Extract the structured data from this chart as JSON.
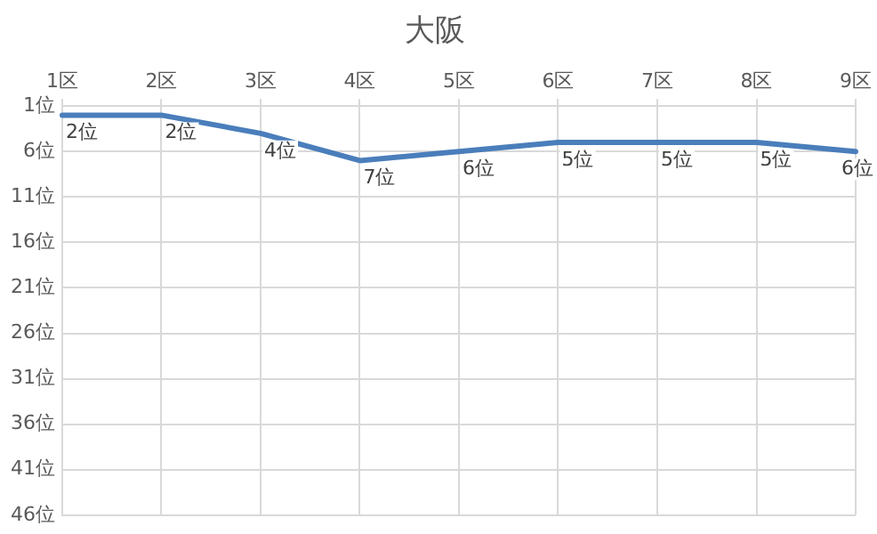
{
  "chart_data": {
    "type": "line",
    "title": "大阪",
    "categories": [
      "1区",
      "2区",
      "3区",
      "4区",
      "5区",
      "6区",
      "7区",
      "8区",
      "9区"
    ],
    "series": [
      {
        "color": "#4a7ebb",
        "values": [
          2,
          2,
          4,
          7,
          6,
          5,
          5,
          5,
          6
        ],
        "value_labels": [
          "2位",
          "2位",
          "4位",
          "7位",
          "6位",
          "5位",
          "5位",
          "5位",
          "6位"
        ]
      }
    ],
    "ylim": [
      46,
      1
    ],
    "yticks": [
      {
        "value": 1,
        "label": "1位"
      },
      {
        "value": 6,
        "label": "6位"
      },
      {
        "value": 11,
        "label": "11位"
      },
      {
        "value": 16,
        "label": "16位"
      },
      {
        "value": 21,
        "label": "21位"
      },
      {
        "value": 26,
        "label": "26位"
      },
      {
        "value": 31,
        "label": "31位"
      },
      {
        "value": 36,
        "label": "36位"
      },
      {
        "value": 41,
        "label": "41位"
      },
      {
        "value": 46,
        "label": "46位"
      }
    ],
    "grid": true,
    "legend": false,
    "marker": "none",
    "line_style": "solid"
  }
}
